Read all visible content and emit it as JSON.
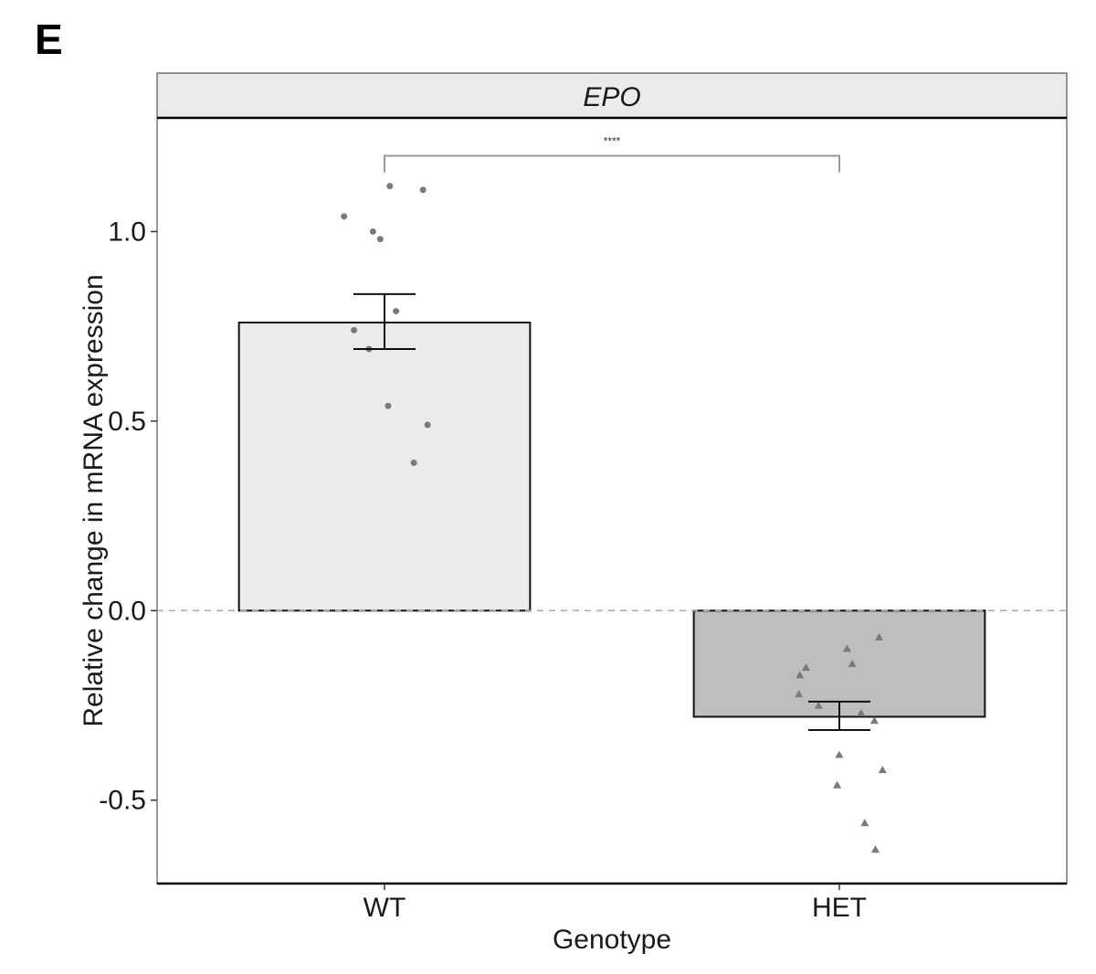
{
  "panel_label": "E",
  "chart_data": {
    "type": "bar",
    "facet": "EPO",
    "xlabel": "Genotype",
    "ylabel": "Relative change in mRNA expression",
    "categories": [
      "WT",
      "HET"
    ],
    "values": [
      0.76,
      -0.28
    ],
    "error_upper": [
      0.835,
      -0.24
    ],
    "error_lower": [
      0.69,
      -0.315
    ],
    "bar_colors": [
      "#ebebeb",
      "#bebebe"
    ],
    "ylim": [
      -0.72,
      1.3
    ],
    "yticks": [
      -0.5,
      0.0,
      0.5,
      1.0
    ],
    "ytick_labels": [
      "-0.5",
      "0.0",
      "0.5",
      "1.0"
    ],
    "reference_line": 0.0,
    "points": [
      {
        "category": "WT",
        "shape": "circle",
        "values": [
          1.11,
          1.04,
          1.12,
          1.0,
          0.98,
          0.79,
          0.74,
          0.69,
          0.54,
          0.49,
          0.39
        ]
      },
      {
        "category": "HET",
        "shape": "triangle",
        "values": [
          -0.07,
          -0.1,
          -0.14,
          -0.15,
          -0.17,
          -0.22,
          -0.25,
          -0.27,
          -0.29,
          -0.38,
          -0.42,
          -0.46,
          -0.56,
          -0.63
        ]
      }
    ],
    "significance": {
      "from": "WT",
      "to": "HET",
      "label": "****",
      "y": 1.2
    },
    "grid": false
  }
}
